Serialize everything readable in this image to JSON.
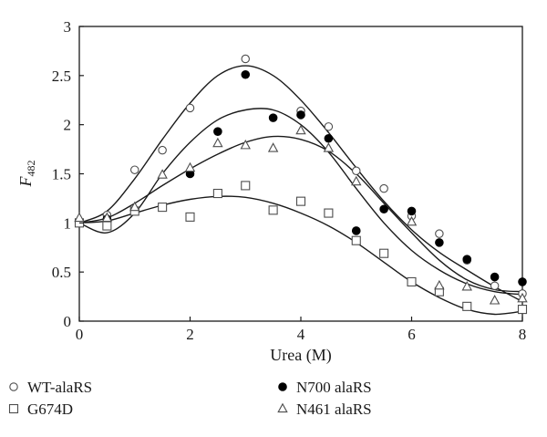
{
  "chart_data": {
    "type": "scatter",
    "xlabel": "Urea (M)",
    "ylabel": "F",
    "ylabel_sub": "482",
    "xlim": [
      0,
      8
    ],
    "ylim": [
      0,
      3
    ],
    "xticks": [
      0,
      2,
      4,
      6,
      8
    ],
    "yticks": [
      0,
      0.5,
      1,
      1.5,
      2,
      2.5,
      3
    ],
    "ytick_labels": [
      "0",
      "0.5",
      "1",
      "1.5",
      "2",
      "2.5",
      "3"
    ],
    "grid": false,
    "legend_position": "bottom",
    "series": [
      {
        "name": "WT-alaRS",
        "marker": "open-circle",
        "x": [
          0,
          0.5,
          1,
          1.5,
          2,
          3,
          4,
          4.5,
          5,
          5.5,
          6,
          6.5,
          7,
          7.5,
          8
        ],
        "y": [
          1.0,
          1.08,
          1.54,
          1.74,
          2.17,
          2.67,
          2.14,
          1.98,
          1.53,
          1.35,
          1.07,
          0.89,
          0.62,
          0.36,
          0.28
        ],
        "fit": [
          [
            0,
            1.0
          ],
          [
            0.5,
            1.12
          ],
          [
            1,
            1.45
          ],
          [
            1.5,
            1.85
          ],
          [
            2,
            2.22
          ],
          [
            2.5,
            2.5
          ],
          [
            3,
            2.6
          ],
          [
            3.5,
            2.5
          ],
          [
            4,
            2.25
          ],
          [
            4.5,
            1.92
          ],
          [
            5,
            1.56
          ],
          [
            5.5,
            1.22
          ],
          [
            6,
            0.93
          ],
          [
            6.5,
            0.7
          ],
          [
            7,
            0.52
          ],
          [
            7.5,
            0.35
          ],
          [
            8,
            0.2
          ]
        ]
      },
      {
        "name": "N700 alaRS",
        "marker": "filled-circle",
        "x": [
          0,
          0.5,
          2,
          2.5,
          3,
          3.5,
          4,
          4.5,
          5,
          5.5,
          6,
          6.5,
          7,
          7.5,
          8
        ],
        "y": [
          1.0,
          1.04,
          1.5,
          1.93,
          2.51,
          2.07,
          2.1,
          1.86,
          0.92,
          1.14,
          1.12,
          0.8,
          0.63,
          0.45,
          0.4
        ],
        "fit": [
          [
            0,
            1.0
          ],
          [
            0.5,
            0.9
          ],
          [
            1,
            1.1
          ],
          [
            1.5,
            1.5
          ],
          [
            2,
            1.82
          ],
          [
            2.5,
            2.05
          ],
          [
            3,
            2.15
          ],
          [
            3.5,
            2.15
          ],
          [
            4,
            2.0
          ],
          [
            4.5,
            1.72
          ],
          [
            5,
            1.35
          ],
          [
            5.5,
            1.0
          ],
          [
            6,
            0.72
          ],
          [
            6.5,
            0.52
          ],
          [
            7,
            0.38
          ],
          [
            7.5,
            0.3
          ],
          [
            8,
            0.27
          ]
        ]
      },
      {
        "name": "G674D",
        "marker": "open-square",
        "x": [
          0,
          0.5,
          1,
          1.5,
          2,
          2.5,
          3,
          3.5,
          4,
          4.5,
          5,
          5.5,
          6,
          6.5,
          7,
          8
        ],
        "y": [
          1.0,
          0.97,
          1.12,
          1.16,
          1.06,
          1.3,
          1.38,
          1.13,
          1.22,
          1.1,
          0.82,
          0.69,
          0.4,
          0.3,
          0.15,
          0.12
        ],
        "fit": [
          [
            0,
            1.0
          ],
          [
            0.5,
            1.02
          ],
          [
            1,
            1.1
          ],
          [
            1.5,
            1.18
          ],
          [
            2,
            1.24
          ],
          [
            2.5,
            1.27
          ],
          [
            3,
            1.26
          ],
          [
            3.5,
            1.2
          ],
          [
            4,
            1.1
          ],
          [
            4.5,
            0.97
          ],
          [
            5,
            0.8
          ],
          [
            5.5,
            0.6
          ],
          [
            6,
            0.4
          ],
          [
            6.5,
            0.24
          ],
          [
            7,
            0.12
          ],
          [
            7.5,
            0.07
          ],
          [
            8,
            0.1
          ]
        ]
      },
      {
        "name": "N461 alaRS",
        "marker": "open-triangle",
        "x": [
          0,
          0.5,
          1,
          1.5,
          2,
          2.5,
          3,
          3.5,
          4,
          4.5,
          5,
          6,
          6.5,
          7,
          7.5,
          8
        ],
        "y": [
          1.05,
          1.05,
          1.16,
          1.49,
          1.56,
          1.81,
          1.79,
          1.76,
          1.94,
          1.76,
          1.42,
          1.01,
          0.36,
          0.35,
          0.21,
          0.23
        ],
        "fit": [
          [
            0,
            1.0
          ],
          [
            0.5,
            1.05
          ],
          [
            1,
            1.2
          ],
          [
            1.5,
            1.38
          ],
          [
            2,
            1.55
          ],
          [
            2.5,
            1.7
          ],
          [
            3,
            1.82
          ],
          [
            3.5,
            1.88
          ],
          [
            4,
            1.85
          ],
          [
            4.5,
            1.73
          ],
          [
            5,
            1.5
          ],
          [
            5.5,
            1.2
          ],
          [
            6,
            0.9
          ],
          [
            6.5,
            0.62
          ],
          [
            7,
            0.42
          ],
          [
            7.5,
            0.32
          ],
          [
            8,
            0.3
          ]
        ]
      }
    ],
    "legend": [
      {
        "label": "WT-alaRS",
        "marker": "open-circle"
      },
      {
        "label": "N700 alaRS",
        "marker": "filled-circle"
      },
      {
        "label": "G674D",
        "marker": "open-square"
      },
      {
        "label": "N461 alaRS",
        "marker": "open-triangle"
      }
    ],
    "colors": {
      "line": "#1a1a1a",
      "marker_fill": "#ffffff",
      "marker_stroke": "#4d4d4d",
      "filled_marker": "#000000"
    }
  }
}
